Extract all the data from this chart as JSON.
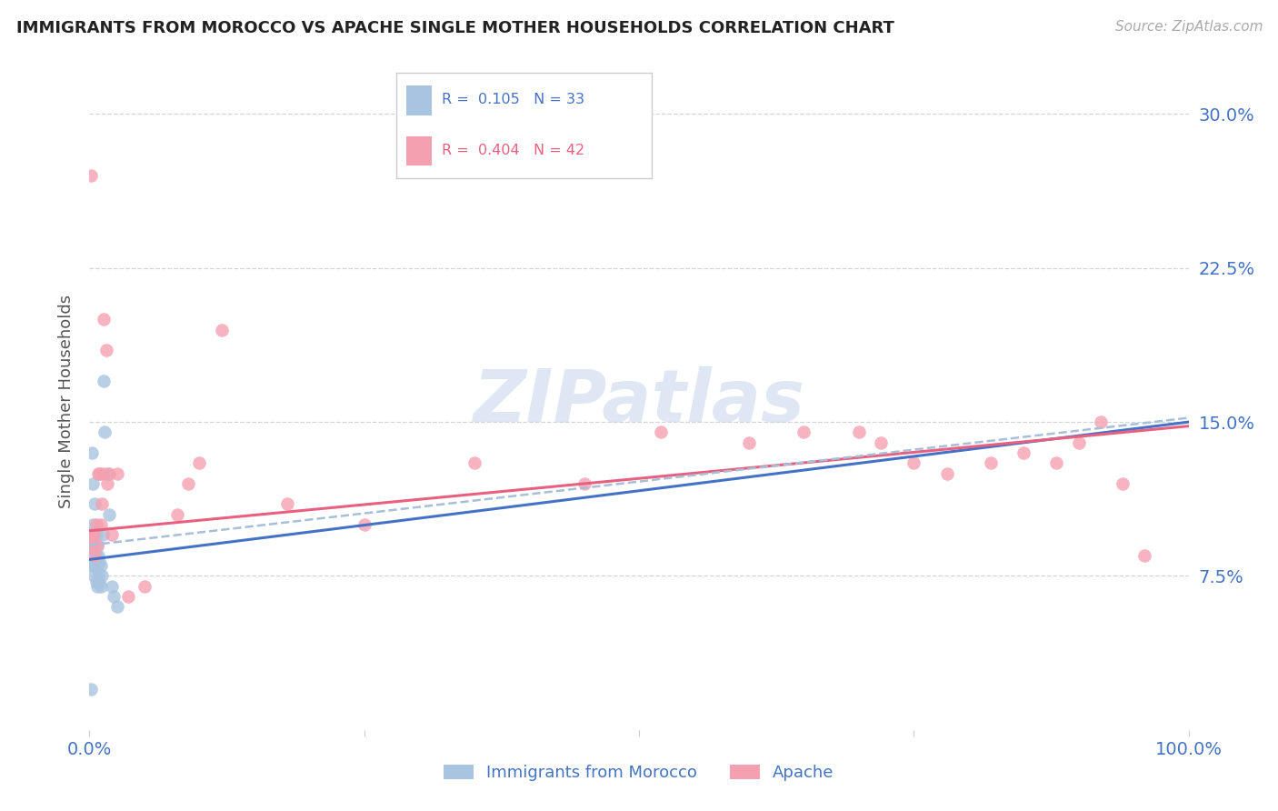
{
  "title": "IMMIGRANTS FROM MOROCCO VS APACHE SINGLE MOTHER HOUSEHOLDS CORRELATION CHART",
  "source": "Source: ZipAtlas.com",
  "ylabel": "Single Mother Households",
  "y_tick_labels": [
    "7.5%",
    "15.0%",
    "22.5%",
    "30.0%"
  ],
  "y_tick_values": [
    0.075,
    0.15,
    0.225,
    0.3
  ],
  "xlim": [
    0.0,
    1.0
  ],
  "ylim": [
    0.0,
    0.32
  ],
  "legend_label_blue": "Immigrants from Morocco",
  "legend_label_pink": "Apache",
  "legend_r_blue": "R =  0.105",
  "legend_n_blue": "N = 33",
  "legend_r_pink": "R =  0.404",
  "legend_n_pink": "N = 42",
  "blue_color": "#a8c4e0",
  "pink_color": "#f5a0b0",
  "blue_line_color": "#4472c4",
  "pink_line_color": "#e86080",
  "dashed_line_color": "#a8bfd8",
  "title_color": "#222222",
  "axis_label_color": "#4472c4",
  "watermark_color": "#c8d8ec",
  "grid_color": "#d0d0d0",
  "blue_scatter_x": [
    0.001,
    0.002,
    0.002,
    0.003,
    0.003,
    0.003,
    0.004,
    0.004,
    0.004,
    0.005,
    0.005,
    0.005,
    0.006,
    0.006,
    0.006,
    0.007,
    0.007,
    0.007,
    0.008,
    0.008,
    0.009,
    0.009,
    0.01,
    0.01,
    0.011,
    0.012,
    0.013,
    0.014,
    0.016,
    0.018,
    0.02,
    0.022,
    0.025
  ],
  "blue_scatter_y": [
    0.02,
    0.135,
    0.09,
    0.12,
    0.1,
    0.08,
    0.09,
    0.085,
    0.075,
    0.11,
    0.095,
    0.08,
    0.095,
    0.085,
    0.072,
    0.09,
    0.08,
    0.07,
    0.085,
    0.075,
    0.082,
    0.072,
    0.08,
    0.07,
    0.075,
    0.095,
    0.17,
    0.145,
    0.125,
    0.105,
    0.07,
    0.065,
    0.06
  ],
  "pink_scatter_x": [
    0.001,
    0.002,
    0.003,
    0.004,
    0.005,
    0.006,
    0.007,
    0.008,
    0.009,
    0.01,
    0.011,
    0.012,
    0.013,
    0.015,
    0.016,
    0.018,
    0.02,
    0.025,
    0.035,
    0.05,
    0.08,
    0.09,
    0.1,
    0.12,
    0.18,
    0.25,
    0.35,
    0.45,
    0.52,
    0.6,
    0.65,
    0.7,
    0.72,
    0.75,
    0.78,
    0.82,
    0.85,
    0.88,
    0.9,
    0.92,
    0.94,
    0.96
  ],
  "pink_scatter_y": [
    0.27,
    0.095,
    0.09,
    0.095,
    0.085,
    0.1,
    0.09,
    0.125,
    0.125,
    0.1,
    0.11,
    0.125,
    0.2,
    0.185,
    0.12,
    0.125,
    0.095,
    0.125,
    0.065,
    0.07,
    0.105,
    0.12,
    0.13,
    0.195,
    0.11,
    0.1,
    0.13,
    0.12,
    0.145,
    0.14,
    0.145,
    0.145,
    0.14,
    0.13,
    0.125,
    0.13,
    0.135,
    0.13,
    0.14,
    0.15,
    0.12,
    0.085
  ],
  "blue_line_x": [
    0.0,
    1.0
  ],
  "blue_line_y": [
    0.083,
    0.15
  ],
  "pink_line_x": [
    0.0,
    1.0
  ],
  "pink_line_y": [
    0.097,
    0.148
  ],
  "dashed_line_x": [
    0.0,
    1.0
  ],
  "dashed_line_y": [
    0.09,
    0.152
  ]
}
